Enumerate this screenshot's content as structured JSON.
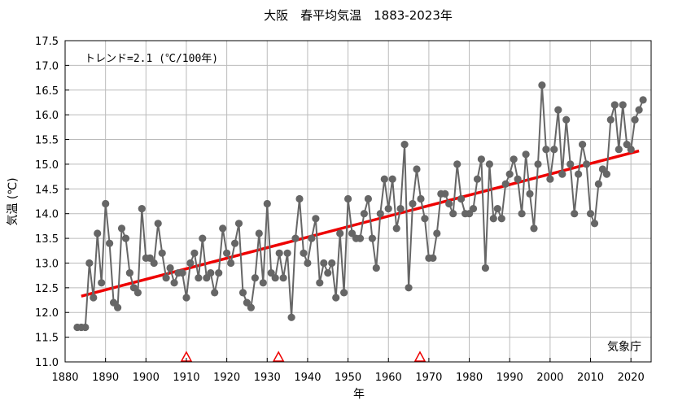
{
  "chart_data": {
    "type": "line",
    "title": "大阪　春平均気温　1883-2023年",
    "xlabel": "年",
    "ylabel": "気温 (℃)",
    "xlim": [
      1880,
      2025
    ],
    "ylim": [
      11.0,
      17.5
    ],
    "x_ticks": [
      1880,
      1890,
      1900,
      1910,
      1920,
      1930,
      1940,
      1950,
      1960,
      1970,
      1980,
      1990,
      2000,
      2010,
      2020
    ],
    "y_ticks": [
      "11.0",
      "11.5",
      "12.0",
      "12.5",
      "13.0",
      "13.5",
      "14.0",
      "14.5",
      "15.0",
      "15.5",
      "16.0",
      "16.5",
      "17.0",
      "17.5"
    ],
    "grid": true,
    "trend_label": "トレンド=2.1 (℃/100年)",
    "source_label": "気象庁",
    "colors": {
      "series": "#666666",
      "trend": "#ee0000",
      "markers": "#ee0000",
      "grid": "#bbbbbb"
    },
    "series": [
      {
        "x": [
          1883,
          1884,
          1885,
          1886,
          1887,
          1888,
          1889,
          1890,
          1891,
          1892,
          1893,
          1894,
          1895,
          1896,
          1897,
          1898,
          1899,
          1900,
          1901,
          1902,
          1903,
          1904,
          1905,
          1906,
          1907,
          1908,
          1909,
          1910,
          1911,
          1912,
          1913,
          1914,
          1915,
          1916,
          1917,
          1918,
          1919,
          1920,
          1921,
          1922,
          1923,
          1924,
          1925,
          1926,
          1927,
          1928,
          1929,
          1930,
          1931,
          1932,
          1933,
          1934,
          1935,
          1936,
          1937,
          1938,
          1939,
          1940,
          1941,
          1942,
          1943,
          1944,
          1945,
          1946,
          1947,
          1948,
          1949,
          1950,
          1951,
          1952,
          1953,
          1954,
          1955,
          1956,
          1957,
          1958,
          1959,
          1960,
          1961,
          1962,
          1963,
          1964,
          1965,
          1966,
          1967,
          1968,
          1969,
          1970,
          1971,
          1972,
          1973,
          1974,
          1975,
          1976,
          1977,
          1978,
          1979,
          1980,
          1981,
          1982,
          1983,
          1984,
          1985,
          1986,
          1987,
          1988,
          1989,
          1990,
          1991,
          1992,
          1993,
          1994,
          1995,
          1996,
          1997,
          1998,
          1999,
          2000,
          2001,
          2002,
          2003,
          2004,
          2005,
          2006,
          2007,
          2008,
          2009,
          2010,
          2011,
          2012,
          2013,
          2014,
          2015,
          2016,
          2017,
          2018,
          2019,
          2020,
          2021,
          2022,
          2023
        ],
        "values": [
          11.7,
          11.7,
          11.7,
          13.0,
          12.3,
          13.6,
          12.6,
          14.2,
          13.4,
          12.2,
          12.1,
          13.7,
          13.5,
          12.8,
          12.5,
          12.4,
          14.1,
          13.1,
          13.1,
          13.0,
          13.8,
          13.2,
          12.7,
          12.9,
          12.6,
          12.8,
          12.8,
          12.3,
          13.0,
          13.2,
          12.7,
          13.5,
          12.7,
          12.8,
          12.4,
          12.8,
          13.7,
          13.2,
          13.0,
          13.4,
          13.8,
          12.4,
          12.2,
          12.1,
          12.7,
          13.6,
          12.6,
          14.2,
          12.8,
          12.7,
          13.2,
          12.7,
          13.2,
          11.9,
          13.5,
          14.3,
          13.2,
          13.0,
          13.5,
          13.9,
          12.6,
          13.0,
          12.8,
          13.0,
          12.3,
          13.6,
          12.4,
          14.3,
          13.6,
          13.5,
          13.5,
          14.0,
          14.3,
          13.5,
          12.9,
          14.0,
          14.7,
          14.1,
          14.7,
          13.7,
          14.1,
          15.4,
          12.5,
          14.2,
          14.9,
          14.3,
          13.9,
          13.1,
          13.1,
          13.6,
          14.4,
          14.4,
          14.2,
          14.0,
          15.0,
          14.3,
          14.0,
          14.0,
          14.1,
          14.7,
          15.1,
          12.9,
          15.0,
          13.9,
          14.1,
          13.9,
          14.6,
          14.8,
          15.1,
          14.7,
          14.0,
          15.2,
          14.4,
          13.7,
          15.0,
          16.6,
          15.3,
          14.7,
          15.3,
          16.1,
          14.8,
          15.9,
          15.0,
          14.0,
          14.8,
          15.4,
          15.0,
          14.0,
          13.8,
          14.6,
          14.9,
          14.8,
          15.9,
          16.2,
          15.3,
          16.2,
          15.4,
          15.3,
          15.9,
          16.1,
          16.3
        ]
      }
    ],
    "trend": {
      "x": [
        1884,
        2022
      ],
      "values": [
        12.33,
        15.27
      ]
    },
    "change_markers_x": [
      1910,
      1932.8,
      1967.8
    ]
  }
}
